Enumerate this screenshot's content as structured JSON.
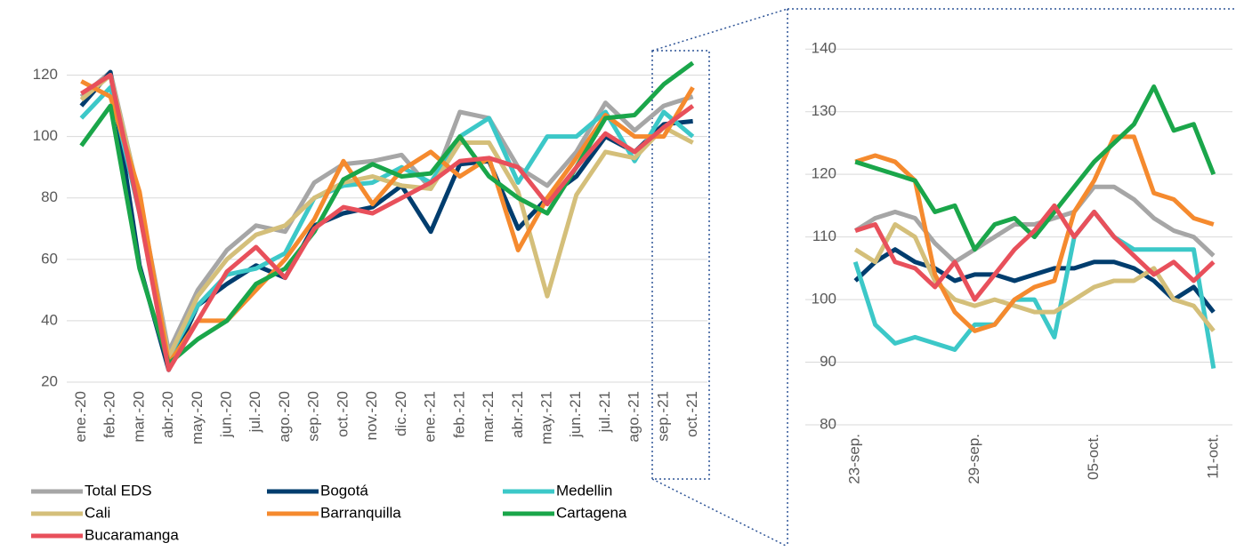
{
  "chart_data": [
    {
      "type": "line",
      "categories": [
        "ene.-20",
        "feb.-20",
        "mar.-20",
        "abr.-20",
        "may.-20",
        "jun.-20",
        "jul.-20",
        "ago.-20",
        "sep.-20",
        "oct.-20",
        "nov.-20",
        "dic.-20",
        "ene.-21",
        "feb.-21",
        "mar.-21",
        "abr.-21",
        "may.-21",
        "jun.-21",
        "jul.-21",
        "ago.-21",
        "sep.-21",
        "oct.-21"
      ],
      "ylim": [
        20,
        130
      ],
      "yticks": [
        20,
        40,
        60,
        80,
        100,
        120
      ],
      "grid": true,
      "series": [
        {
          "name": "Total EDS",
          "color": "#a6a6a6",
          "values": [
            113,
            121,
            80,
            30,
            50,
            63,
            71,
            69,
            85,
            91,
            92,
            94,
            83,
            108,
            106,
            90,
            84,
            95,
            111,
            102,
            110,
            113
          ]
        },
        {
          "name": "Bogotá",
          "color": "#003d6e",
          "values": [
            110,
            121,
            58,
            24,
            45,
            52,
            58,
            54,
            71,
            75,
            77,
            84,
            69,
            91,
            92,
            70,
            80,
            87,
            100,
            95,
            104,
            105
          ]
        },
        {
          "name": "Medellin",
          "color": "#3cc8c8",
          "values": [
            106,
            116,
            75,
            28,
            45,
            55,
            57,
            62,
            80,
            84,
            85,
            90,
            85,
            100,
            106,
            85,
            100,
            100,
            108,
            92,
            108,
            100
          ]
        },
        {
          "name": "Cali",
          "color": "#d4bf7a",
          "values": [
            112,
            120,
            80,
            28,
            48,
            60,
            68,
            71,
            80,
            85,
            87,
            84,
            83,
            98,
            98,
            82,
            48,
            81,
            95,
            93,
            103,
            98
          ]
        },
        {
          "name": "Barranquilla",
          "color": "#f58a2e",
          "values": [
            118,
            113,
            82,
            26,
            40,
            40,
            50,
            60,
            73,
            92,
            78,
            89,
            95,
            87,
            93,
            63,
            80,
            93,
            107,
            100,
            100,
            116
          ]
        },
        {
          "name": "Cartagena",
          "color": "#1aa64a",
          "values": [
            97,
            110,
            57,
            26,
            34,
            40,
            52,
            57,
            69,
            86,
            91,
            87,
            88,
            100,
            87,
            80,
            75,
            90,
            106,
            107,
            117,
            124
          ]
        },
        {
          "name": "Bucaramanga",
          "color": "#e8505b",
          "values": [
            114,
            120,
            75,
            24,
            40,
            56,
            64,
            54,
            70,
            77,
            75,
            80,
            85,
            92,
            93,
            90,
            78,
            90,
            101,
            95,
            103,
            110
          ]
        }
      ]
    },
    {
      "type": "line",
      "categories": [
        "23-sep.",
        null,
        null,
        null,
        null,
        null,
        "29-sep.",
        null,
        null,
        null,
        null,
        null,
        "05-oct.",
        null,
        null,
        null,
        null,
        null,
        "11-oct."
      ],
      "ylim": [
        80,
        145
      ],
      "yticks": [
        80,
        90,
        100,
        110,
        120,
        130,
        140
      ],
      "grid": true,
      "series": [
        {
          "color": "#a6a6a6",
          "values": [
            111,
            113,
            114,
            113,
            109,
            106,
            108,
            110,
            112,
            112,
            113,
            114,
            118,
            118,
            116,
            113,
            111,
            110,
            107
          ]
        },
        {
          "color": "#003d6e",
          "values": [
            103,
            106,
            108,
            106,
            105,
            103,
            104,
            104,
            103,
            104,
            105,
            105,
            106,
            106,
            105,
            103,
            100,
            102,
            98
          ]
        },
        {
          "color": "#3cc8c8",
          "values": [
            106,
            96,
            93,
            94,
            93,
            92,
            96,
            96,
            100,
            100,
            94,
            110,
            114,
            110,
            108,
            108,
            108,
            108,
            89
          ]
        },
        {
          "color": "#d4bf7a",
          "values": [
            108,
            106,
            112,
            110,
            103,
            100,
            99,
            100,
            99,
            98,
            98,
            100,
            102,
            103,
            103,
            105,
            100,
            99,
            95
          ]
        },
        {
          "color": "#f58a2e",
          "values": [
            122,
            123,
            122,
            119,
            104,
            98,
            95,
            96,
            100,
            102,
            103,
            114,
            119,
            126,
            126,
            117,
            116,
            113,
            112
          ]
        },
        {
          "color": "#1aa64a",
          "values": [
            122,
            121,
            120,
            119,
            114,
            115,
            108,
            112,
            113,
            110,
            114,
            118,
            122,
            125,
            128,
            134,
            127,
            128,
            120
          ]
        },
        {
          "color": "#e8505b",
          "values": [
            111,
            112,
            106,
            105,
            102,
            106,
            100,
            104,
            108,
            111,
            115,
            110,
            114,
            110,
            107,
            104,
            106,
            103,
            106
          ]
        }
      ]
    }
  ]
}
